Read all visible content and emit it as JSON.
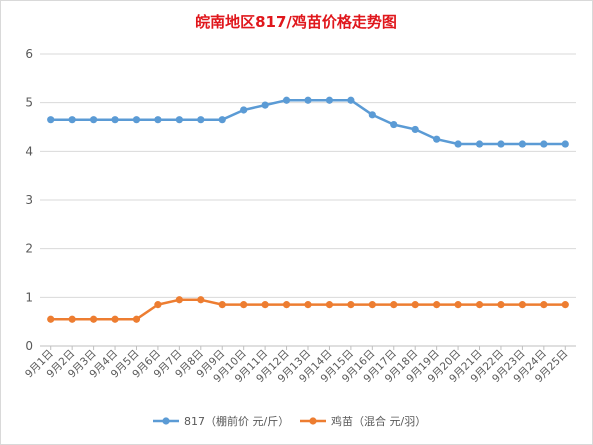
{
  "chart_data": {
    "type": "line",
    "title": "皖南地区817/鸡苗价格走势图",
    "xlabel": "",
    "ylabel": "",
    "ylim": [
      0,
      6
    ],
    "yticks": [
      "0",
      "1",
      "2",
      "3",
      "4",
      "5",
      "6"
    ],
    "grid": true,
    "legend_position": "bottom",
    "categories": [
      "9月1日",
      "9月2日",
      "9月3日",
      "9月4日",
      "9月5日",
      "9月6日",
      "9月7日",
      "9月8日",
      "9月9日",
      "9月10日",
      "9月11日",
      "9月12日",
      "9月13日",
      "9月14日",
      "9月15日",
      "9月16日",
      "9月17日",
      "9月18日",
      "9月19日",
      "9月20日",
      "9月21日",
      "9月22日",
      "9月23日",
      "9月24日",
      "9月25日"
    ],
    "series": [
      {
        "name": "817（棚前价 元/斤）",
        "color": "#5b9bd5",
        "values": [
          4.65,
          4.65,
          4.65,
          4.65,
          4.65,
          4.65,
          4.65,
          4.65,
          4.65,
          4.85,
          4.95,
          5.05,
          5.05,
          5.05,
          5.05,
          4.75,
          4.55,
          4.45,
          4.25,
          4.15,
          4.15,
          4.15,
          4.15,
          4.15,
          4.15
        ]
      },
      {
        "name": "鸡苗（混合 元/羽）",
        "color": "#ed7d31",
        "values": [
          0.55,
          0.55,
          0.55,
          0.55,
          0.55,
          0.85,
          0.95,
          0.95,
          0.85,
          0.85,
          0.85,
          0.85,
          0.85,
          0.85,
          0.85,
          0.85,
          0.85,
          0.85,
          0.85,
          0.85,
          0.85,
          0.85,
          0.85,
          0.85,
          0.85
        ]
      }
    ]
  }
}
